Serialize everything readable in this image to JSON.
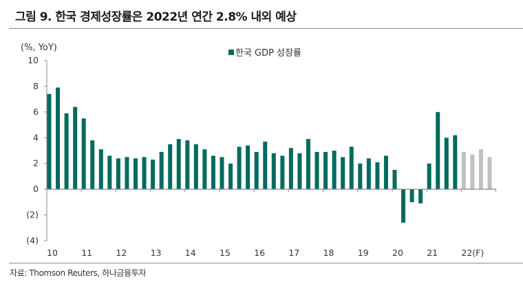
{
  "title": "그림 9. 한국 경제성장률은 2022년 연간 2.8% 내외 예상",
  "source": "자료: Thomson Reuters, 하나금융투자",
  "colors": {
    "actual": "#006B5E",
    "forecast": "#C0C0C0",
    "axis": "#888888"
  },
  "chart_data": {
    "type": "bar",
    "ylabel": "(%, YoY)",
    "ylim": [
      -4,
      10
    ],
    "yticks": [
      10,
      8,
      6,
      4,
      2,
      0,
      -2,
      -4
    ],
    "ytick_labels": [
      "10",
      "8",
      "6",
      "4",
      "2",
      "0",
      "(2)",
      "(4)"
    ],
    "xtick_labels": [
      "10",
      "11",
      "12",
      "13",
      "14",
      "15",
      "16",
      "17",
      "18",
      "19",
      "20",
      "21",
      "22(F)"
    ],
    "bars_per_label": 4,
    "legend": {
      "label": "한국 GDP 성장률",
      "position": "top-center"
    },
    "grid": false,
    "series": [
      {
        "name": "한국 GDP 성장률",
        "values": [
          7.4,
          7.9,
          5.9,
          6.4,
          5.5,
          3.8,
          3.1,
          2.6,
          2.4,
          2.5,
          2.4,
          2.5,
          2.3,
          2.9,
          3.5,
          3.9,
          3.8,
          3.5,
          3.1,
          2.6,
          2.5,
          2.0,
          3.3,
          3.4,
          2.9,
          3.7,
          2.8,
          2.6,
          3.2,
          2.8,
          3.9,
          2.9,
          2.9,
          3.0,
          2.5,
          3.3,
          2.0,
          2.4,
          2.1,
          2.6,
          1.5,
          -2.6,
          -1.0,
          -1.1,
          2.0,
          6.0,
          4.0,
          4.2
        ]
      },
      {
        "forecast": true,
        "values": [
          2.9,
          2.7,
          3.1,
          2.5
        ]
      }
    ]
  }
}
